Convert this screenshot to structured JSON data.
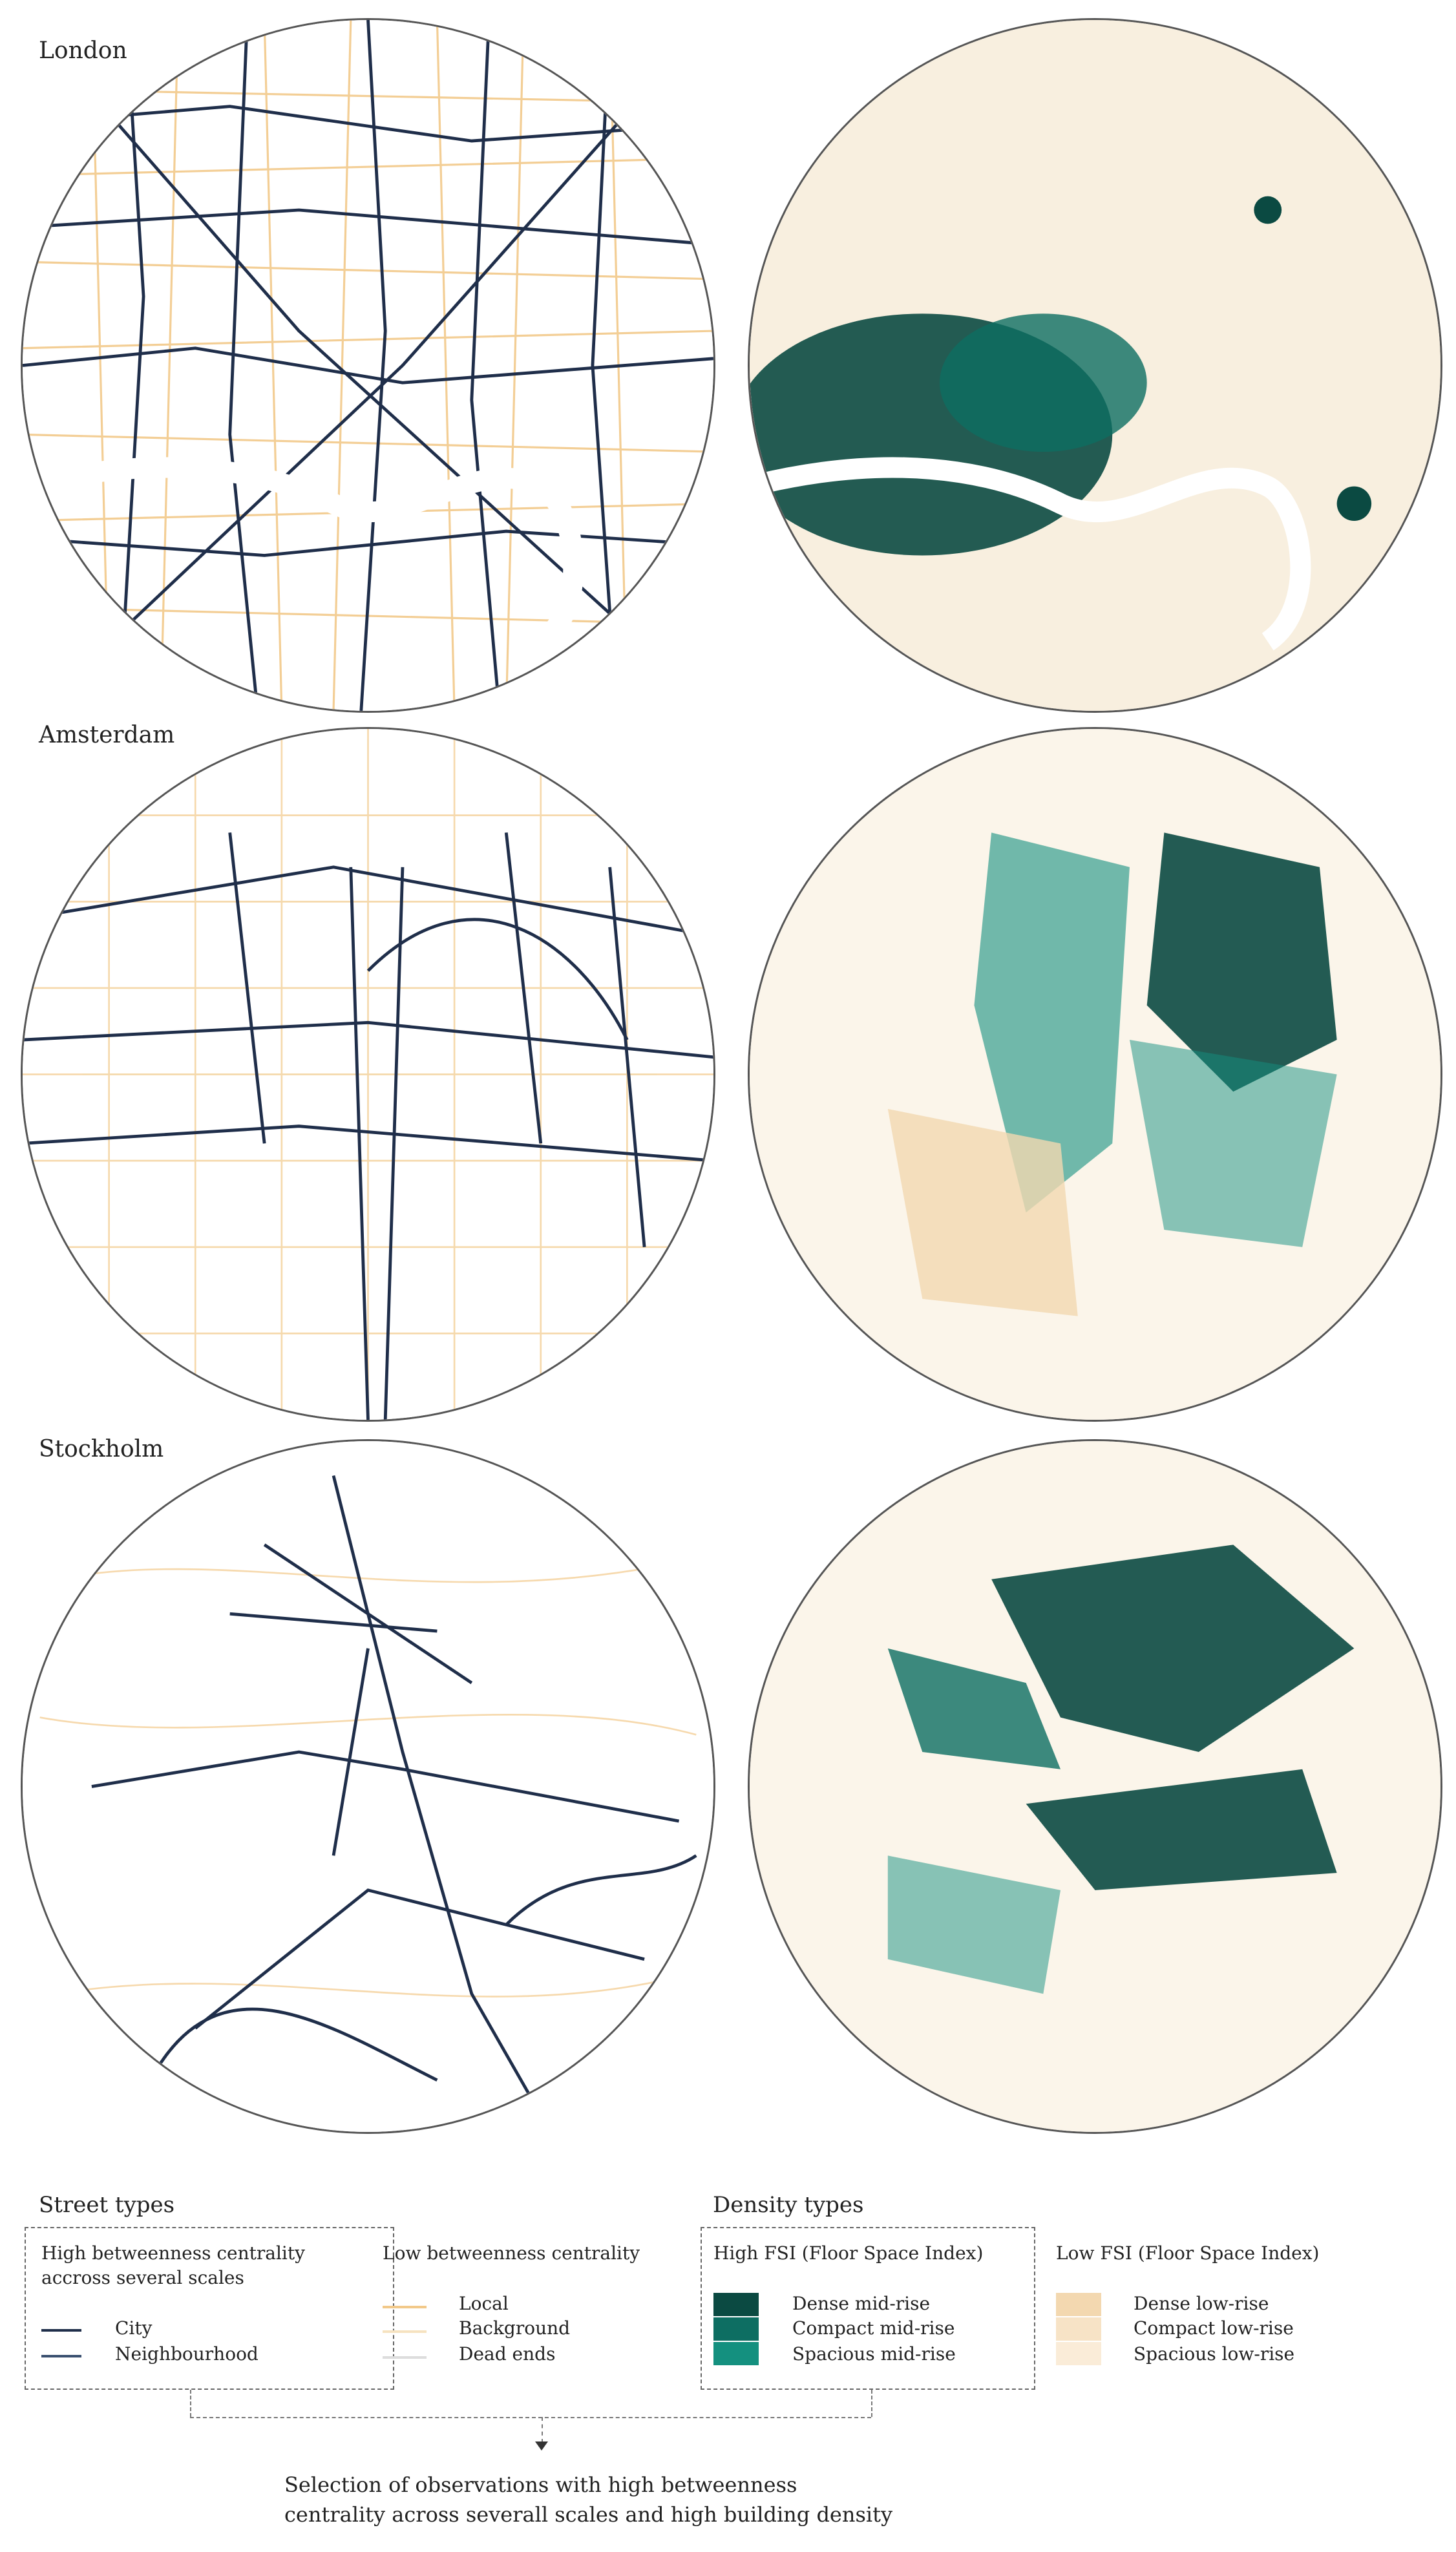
{
  "cities": [
    {
      "name": "London"
    },
    {
      "name": "Amsterdam"
    },
    {
      "name": "Stockholm"
    }
  ],
  "legend": {
    "street_types": {
      "title": "Street types",
      "high_group": {
        "title": "High betweenness centrality accross several scales",
        "items": [
          {
            "label": "City",
            "color": "#1f2e4a"
          },
          {
            "label": "Neighbourhood",
            "color": "#3a5070"
          }
        ]
      },
      "low_group": {
        "title": "Low betweenness centrality",
        "items": [
          {
            "label": "Local",
            "color": "#f2c98a"
          },
          {
            "label": "Background",
            "color": "#f6e2c0"
          },
          {
            "label": "Dead ends",
            "color": "#dddddd"
          }
        ]
      }
    },
    "density_types": {
      "title": "Density  types",
      "high_group": {
        "title": "High FSI (Floor Space Index)",
        "items": [
          {
            "label": "Dense mid-rise",
            "color": "#0b4a42"
          },
          {
            "label": "Compact mid-rise",
            "color": "#0d6e62"
          },
          {
            "label": "Spacious mid-rise",
            "color": "#14907f"
          }
        ]
      },
      "low_group": {
        "title": "Low FSI (Floor Space Index)",
        "items": [
          {
            "label": "Dense low-rise",
            "color": "#f3d8b0"
          },
          {
            "label": "Compact low-rise",
            "color": "#f7e3c6"
          },
          {
            "label": "Spacious low-rise",
            "color": "#faecd8"
          }
        ]
      }
    }
  },
  "caption": {
    "line1": "Selection of observations with high betweenness",
    "line2": "centrality across severall scales and high building density"
  },
  "colors": {
    "street_dark": "#1f2e4a",
    "street_local": "#f2c98a",
    "building_dark": "#0b4a42",
    "building_mid": "#14907f",
    "building_light": "#f6e6cc"
  }
}
